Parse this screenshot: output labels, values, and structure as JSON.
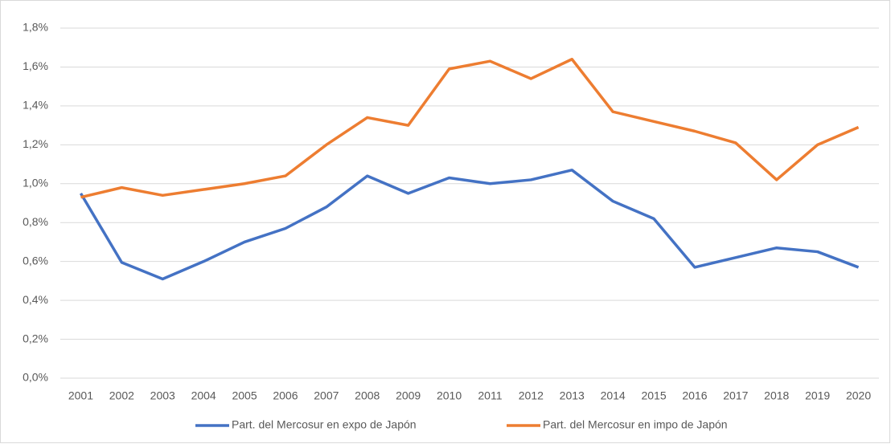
{
  "chart_data": {
    "type": "line",
    "categories": [
      "2001",
      "2002",
      "2003",
      "2004",
      "2005",
      "2006",
      "2007",
      "2008",
      "2009",
      "2010",
      "2011",
      "2012",
      "2013",
      "2014",
      "2015",
      "2016",
      "2017",
      "2018",
      "2019",
      "2020"
    ],
    "series": [
      {
        "name": "Part. del Mercosur en expo de Japón",
        "color": "#4472c4",
        "values": [
          0.95,
          0.595,
          0.51,
          0.6,
          0.7,
          0.77,
          0.88,
          1.04,
          0.95,
          1.03,
          1.0,
          1.02,
          1.07,
          0.91,
          0.82,
          0.57,
          0.62,
          0.67,
          0.65,
          0.57
        ]
      },
      {
        "name": "Part. del Mercosur en impo de Japón",
        "color": "#ed7d31",
        "values": [
          0.93,
          0.98,
          0.94,
          0.97,
          1.0,
          1.04,
          1.2,
          1.34,
          1.3,
          1.59,
          1.63,
          1.54,
          1.64,
          1.37,
          1.32,
          1.27,
          1.21,
          1.02,
          1.2,
          1.29
        ]
      }
    ],
    "ylim": [
      0,
      1.8
    ],
    "yticks": [
      {
        "value": 0,
        "label": "0,0%"
      },
      {
        "value": 0.2,
        "label": "0,2%"
      },
      {
        "value": 0.4,
        "label": "0,4%"
      },
      {
        "value": 0.6,
        "label": "0,6%"
      },
      {
        "value": 0.8,
        "label": "0,8%"
      },
      {
        "value": 1.0,
        "label": "1,0%"
      },
      {
        "value": 1.2,
        "label": "1,2%"
      },
      {
        "value": 1.4,
        "label": "1,4%"
      },
      {
        "value": 1.6,
        "label": "1,6%"
      },
      {
        "value": 1.8,
        "label": "1,8%"
      }
    ],
    "grid": true,
    "legend": "bottom"
  }
}
